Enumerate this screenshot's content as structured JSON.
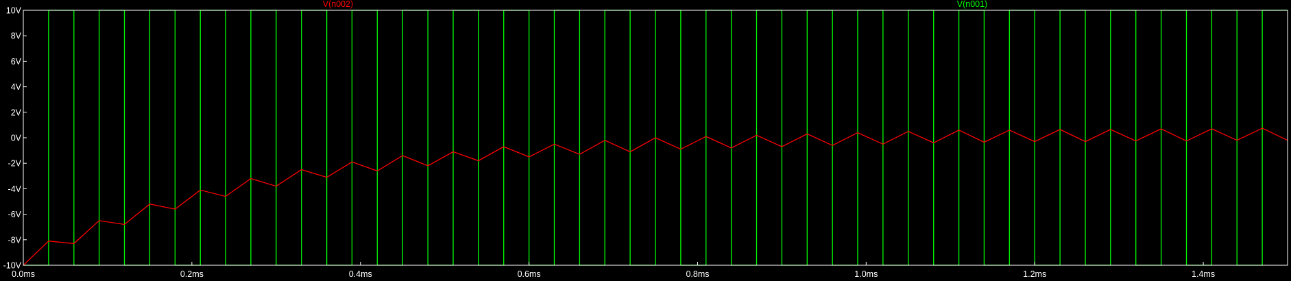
{
  "chart_data": {
    "type": "line",
    "xlabel": "",
    "ylabel": "",
    "xlim": [
      0,
      1.5
    ],
    "ylim": [
      -10,
      10
    ],
    "grid": false,
    "background": "#000000",
    "axis_color": "#ffffff",
    "x_tick_values": [
      0,
      0.2,
      0.4,
      0.6,
      0.8,
      1.0,
      1.2,
      1.4
    ],
    "x_tick_labels": [
      "0.0ms",
      "0.2ms",
      "0.4ms",
      "0.6ms",
      "0.8ms",
      "1.0ms",
      "1.2ms",
      "1.4ms"
    ],
    "y_tick_values": [
      10,
      8,
      6,
      4,
      2,
      0,
      -2,
      -4,
      -6,
      -8,
      -10
    ],
    "y_tick_labels": [
      "10V",
      "8V",
      "6V",
      "4V",
      "2V",
      "0V",
      "-2V",
      "-4V",
      "-6V",
      "-8V",
      "-10V"
    ],
    "series": [
      {
        "name": "V(n002)",
        "color": "#ff0000",
        "x": [
          0.0,
          0.03,
          0.06,
          0.09,
          0.12,
          0.15,
          0.18,
          0.21,
          0.24,
          0.27,
          0.3,
          0.33,
          0.36,
          0.39,
          0.42,
          0.45,
          0.48,
          0.51,
          0.54,
          0.57,
          0.6,
          0.63,
          0.66,
          0.69,
          0.72,
          0.75,
          0.78,
          0.81,
          0.84,
          0.87,
          0.9,
          0.93,
          0.96,
          0.99,
          1.02,
          1.05,
          1.08,
          1.11,
          1.14,
          1.17,
          1.2,
          1.23,
          1.26,
          1.29,
          1.32,
          1.35,
          1.38,
          1.41,
          1.44,
          1.47,
          1.5
        ],
        "y": [
          -10.0,
          -8.1,
          -8.3,
          -6.5,
          -6.8,
          -5.2,
          -5.6,
          -4.1,
          -4.6,
          -3.2,
          -3.8,
          -2.5,
          -3.1,
          -1.9,
          -2.6,
          -1.4,
          -2.2,
          -1.1,
          -1.8,
          -0.7,
          -1.5,
          -0.5,
          -1.3,
          -0.2,
          -1.1,
          0.0,
          -0.9,
          0.1,
          -0.8,
          0.2,
          -0.7,
          0.3,
          -0.6,
          0.4,
          -0.5,
          0.5,
          -0.4,
          0.6,
          -0.35,
          0.6,
          -0.3,
          0.65,
          -0.3,
          0.65,
          -0.25,
          0.7,
          -0.25,
          0.7,
          -0.2,
          0.75,
          -0.2
        ]
      },
      {
        "name": "V(n001)",
        "color": "#00ff00",
        "waveform": "square",
        "low": -10,
        "high": 10,
        "half_period": 0.03,
        "x_start": 0.0,
        "x_end": 1.5
      }
    ]
  }
}
